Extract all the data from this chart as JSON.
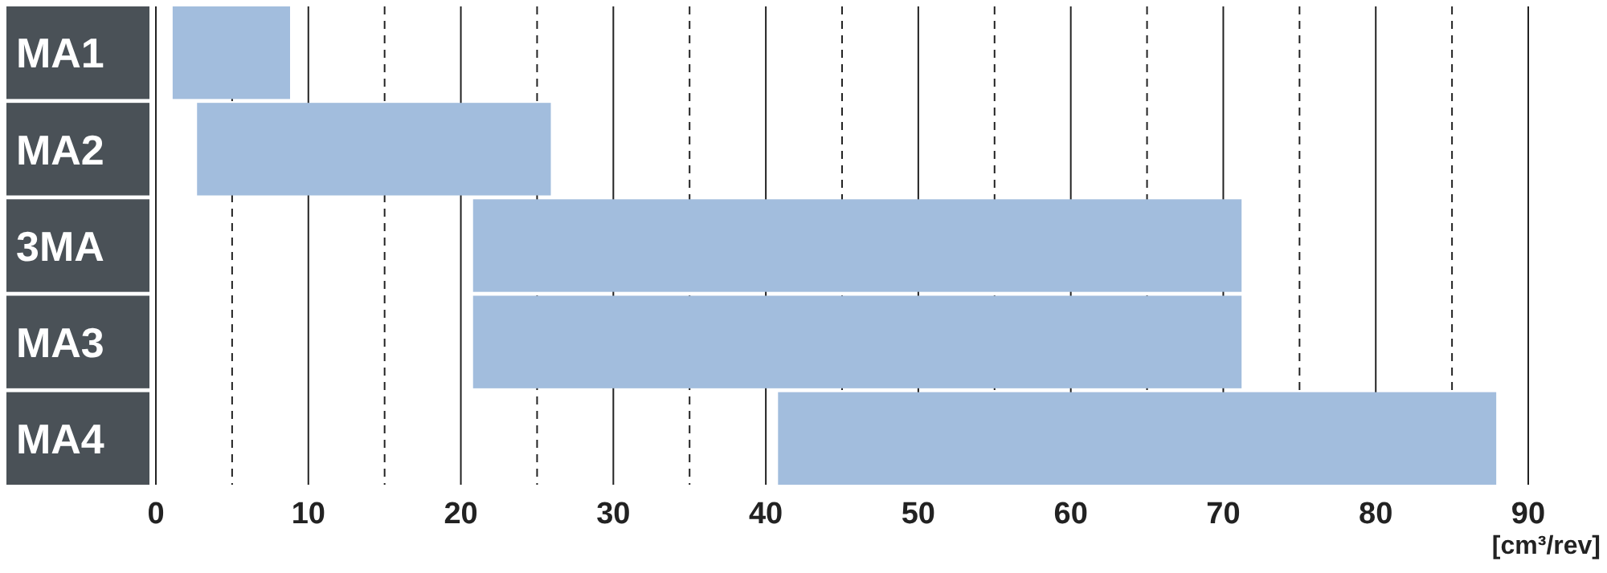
{
  "chart_data": {
    "type": "bar",
    "orientation": "horizontal",
    "categories": [
      "MA1",
      "MA2",
      "3MA",
      "MA3",
      "MA4"
    ],
    "base": [
      1.1,
      2.7,
      20.8,
      20.8,
      40.8
    ],
    "values": [
      7.7,
      23.2,
      50.4,
      50.4,
      47.1
    ],
    "color": "#a2bddd",
    "xlim": [
      0,
      90
    ],
    "xticks": [
      0,
      {
        "value": 5,
        "label": null
      },
      10,
      {
        "value": 15,
        "label": null
      },
      20,
      {
        "value": 25,
        "label": null
      },
      30,
      {
        "value": 35,
        "label": null
      },
      40,
      {
        "value": 45,
        "label": null
      },
      50,
      {
        "value": 55,
        "label": null
      },
      60,
      {
        "value": 65,
        "label": null
      },
      70,
      {
        "value": 75,
        "label": null
      },
      80,
      {
        "value": 85,
        "label": null
      },
      90
    ],
    "xlabel": "[cm³/rev]",
    "grid": "x"
  }
}
